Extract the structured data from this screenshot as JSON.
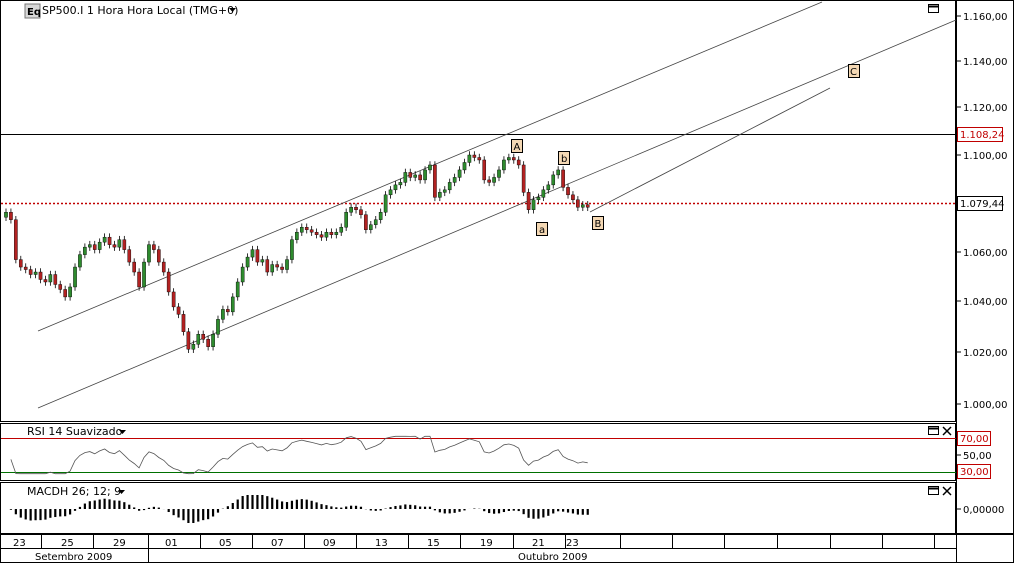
{
  "header": {
    "logo": "Eq",
    "title": "SP500.I 1 Hora Hora Local (TMG+0)",
    "dropdown_icon": "triangle-down-icon"
  },
  "colors": {
    "up_candle": "#2e8b2e",
    "down_candle": "#b22222",
    "price_line": "#c00000",
    "rsi_upper": "#c00000",
    "rsi_lower": "#007000"
  },
  "price_panel": {
    "y_ticks": [
      "1.160,00",
      "1.140,00",
      "1.120,00",
      "1.100,00",
      "1.060,00",
      "1.040,00",
      "1.020,00",
      "1.000,00"
    ],
    "resistance_label": "1.108,24",
    "last_price_label": "1.079,44",
    "wave_labels": {
      "A": "A",
      "B": "B",
      "C": "C",
      "a": "a",
      "b": "b"
    }
  },
  "rsi_panel": {
    "title": "RSI 14 Suavizado",
    "upper_label": "70,00",
    "mid_label": "50,00",
    "lower_label": "30,00"
  },
  "macd_panel": {
    "title": "MACDH 26; 12; 9",
    "zero_label": "0,00000"
  },
  "x_axis": {
    "days": [
      "23",
      "25",
      "29",
      "01",
      "05",
      "07",
      "09",
      "13",
      "15",
      "19",
      "21",
      "23"
    ],
    "month_left": "Setembro 2009",
    "month_right": "Outubro 2009"
  },
  "chart_data": {
    "type": "candlestick",
    "price_axis_range": [
      990,
      1165
    ],
    "rsi_levels": [
      30,
      50,
      70
    ],
    "close_series": [
      1077,
      1074,
      1058,
      1055,
      1054,
      1052,
      1053,
      1050,
      1049,
      1052,
      1048,
      1046,
      1043,
      1047,
      1055,
      1060,
      1063,
      1064,
      1062,
      1065,
      1067,
      1064,
      1063,
      1066,
      1062,
      1057,
      1053,
      1047,
      1057,
      1064,
      1062,
      1057,
      1053,
      1045,
      1039,
      1036,
      1029,
      1022,
      1024,
      1028,
      1026,
      1023,
      1028,
      1034,
      1038,
      1037,
      1043,
      1049,
      1055,
      1059,
      1062,
      1057,
      1058,
      1053,
      1056,
      1055,
      1054,
      1058,
      1066,
      1069,
      1071,
      1070,
      1069,
      1068,
      1067,
      1069,
      1068,
      1069,
      1071,
      1077,
      1079,
      1078,
      1076,
      1070,
      1072,
      1074,
      1077,
      1084,
      1086,
      1088,
      1089,
      1093,
      1091,
      1092,
      1090,
      1094,
      1096,
      1083,
      1085,
      1086,
      1089,
      1091,
      1094,
      1097,
      1100,
      1099,
      1098,
      1090,
      1089,
      1091,
      1094,
      1098,
      1099,
      1098,
      1096,
      1085,
      1078,
      1082,
      1083,
      1086,
      1088,
      1092,
      1094,
      1087,
      1084,
      1082,
      1079,
      1080,
      1079
    ],
    "wave_annotations": [
      "A",
      "a",
      "b",
      "B",
      "C"
    ]
  }
}
